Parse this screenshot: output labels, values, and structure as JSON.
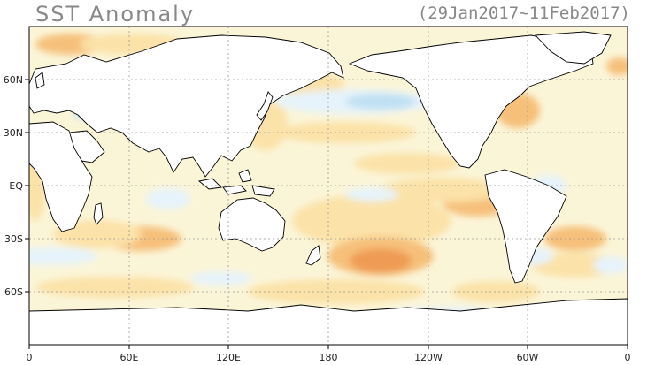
{
  "header": {
    "title": "SST Anomaly",
    "period": "(29Jan2017~11Feb2017)"
  },
  "axes": {
    "lon_ticks": [
      "0",
      "60E",
      "120E",
      "180",
      "120W",
      "60W",
      "0"
    ],
    "lat_ticks": [
      "60N",
      "30N",
      "EQ",
      "30S",
      "60S"
    ]
  },
  "colors": {
    "ocean_neutral": "#fbf5d8",
    "warm_light": "#fbe2a8",
    "warm_mid": "#f6c07a",
    "warm_strong": "#ef9b55",
    "warm_max": "#e97a3a",
    "cool_light": "#e6f3fb",
    "cool_mid": "#bfe0f3",
    "cool_strong": "#9fcbe9",
    "land": "#ffffff",
    "coast": "#000000",
    "grid": "#9a9a9a"
  }
}
